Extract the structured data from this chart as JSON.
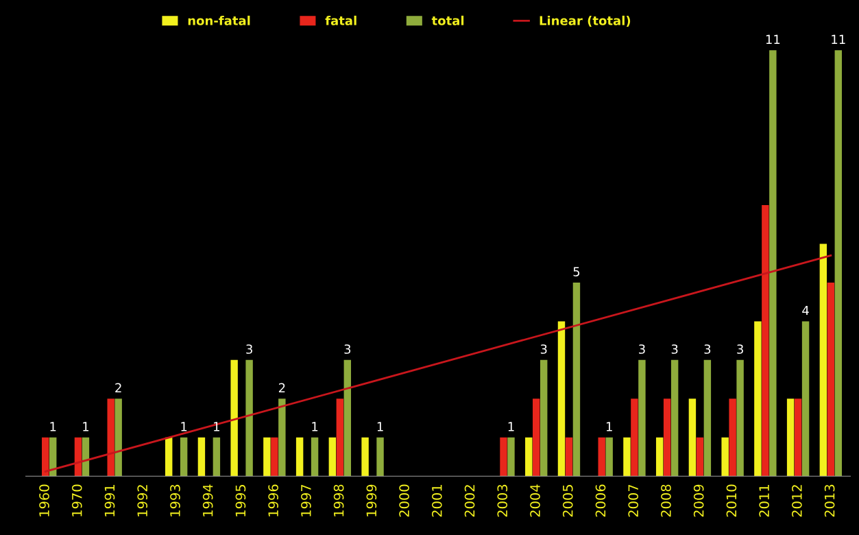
{
  "chart_data": {
    "type": "bar",
    "categories": [
      "1960",
      "1970",
      "1991",
      "1992",
      "1993",
      "1994",
      "1995",
      "1996",
      "1997",
      "1998",
      "1999",
      "2000",
      "2001",
      "2002",
      "2003",
      "2004",
      "2005",
      "2006",
      "2007",
      "2008",
      "2009",
      "2010",
      "2011",
      "2012",
      "2013"
    ],
    "series": [
      {
        "name": "non-fatal",
        "color": "#f2f01e",
        "values": [
          0,
          0,
          0,
          0,
          1,
          1,
          3,
          1,
          1,
          1,
          1,
          0,
          0,
          0,
          0,
          1,
          4,
          0,
          1,
          1,
          2,
          1,
          4,
          2,
          6
        ]
      },
      {
        "name": "fatal",
        "color": "#e8261c",
        "values": [
          1,
          1,
          2,
          0,
          0,
          0,
          0,
          1,
          0,
          2,
          0,
          0,
          0,
          0,
          1,
          2,
          1,
          1,
          2,
          2,
          1,
          2,
          7,
          2,
          5
        ]
      },
      {
        "name": "total",
        "color": "#8fac3c",
        "values": [
          1,
          1,
          2,
          0,
          1,
          1,
          3,
          2,
          1,
          3,
          1,
          0,
          0,
          0,
          1,
          3,
          5,
          1,
          3,
          3,
          3,
          3,
          11,
          4,
          11
        ],
        "value_labels": [
          "1",
          "1",
          "2",
          null,
          "1",
          "1",
          "3",
          "2",
          "1",
          "3",
          "1",
          null,
          null,
          null,
          "1",
          "3",
          "5",
          "1",
          "3",
          "3",
          "3",
          "3",
          "11",
          "4",
          "11"
        ]
      },
      {
        "name": "Linear (total)",
        "type": "line",
        "color": "#c8161c",
        "values": [
          0.12,
          null,
          null,
          null,
          null,
          null,
          null,
          null,
          null,
          null,
          null,
          null,
          null,
          null,
          null,
          null,
          null,
          null,
          null,
          null,
          null,
          null,
          null,
          null,
          5.7
        ]
      }
    ],
    "legend": "top",
    "grid": false
  }
}
